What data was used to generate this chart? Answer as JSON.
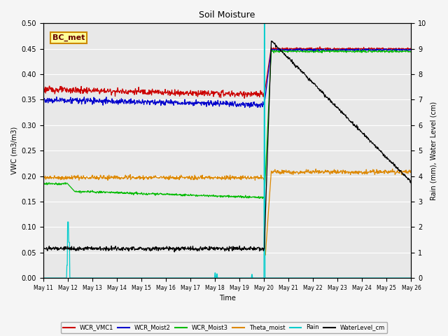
{
  "title": "Soil Moisture",
  "xlabel": "Time",
  "ylabel_left": "VWC (m3/m3)",
  "ylabel_right": "Rain (mm), Water Level (cm)",
  "annotation": "BC_met",
  "ylim_left": [
    0.0,
    0.5
  ],
  "ylim_right": [
    0.0,
    10.0
  ],
  "yticks_left": [
    0.0,
    0.05,
    0.1,
    0.15,
    0.2,
    0.25,
    0.3,
    0.35,
    0.4,
    0.45,
    0.5
  ],
  "yticks_right": [
    0.0,
    1.0,
    2.0,
    3.0,
    4.0,
    5.0,
    6.0,
    7.0,
    8.0,
    9.0,
    10.0
  ],
  "background_color": "#e8e8e8",
  "grid_color": "#ffffff",
  "fig_bg_color": "#f5f5f5",
  "series_colors": {
    "WCR_VMC1": "#cc0000",
    "WCR_Moist2": "#0000cc",
    "WCR_Moist3": "#00bb00",
    "Theta_moist": "#dd8800",
    "Rain": "#00cccc",
    "WaterLevel_cm": "#000000"
  },
  "legend_labels": [
    "WCR_VMC1",
    "WCR_Moist2",
    "WCR_Moist3",
    "Theta_moist",
    "Rain",
    "WaterLevel_cm"
  ],
  "xtick_labels": [
    "May 11",
    "May 12",
    "May 13",
    "May 14",
    "May 15",
    "May 16",
    "May 17",
    "May 18",
    "May 19",
    "May 20",
    "May 21",
    "May 22",
    "May 23",
    "May 24",
    "May 25",
    "May 26"
  ]
}
